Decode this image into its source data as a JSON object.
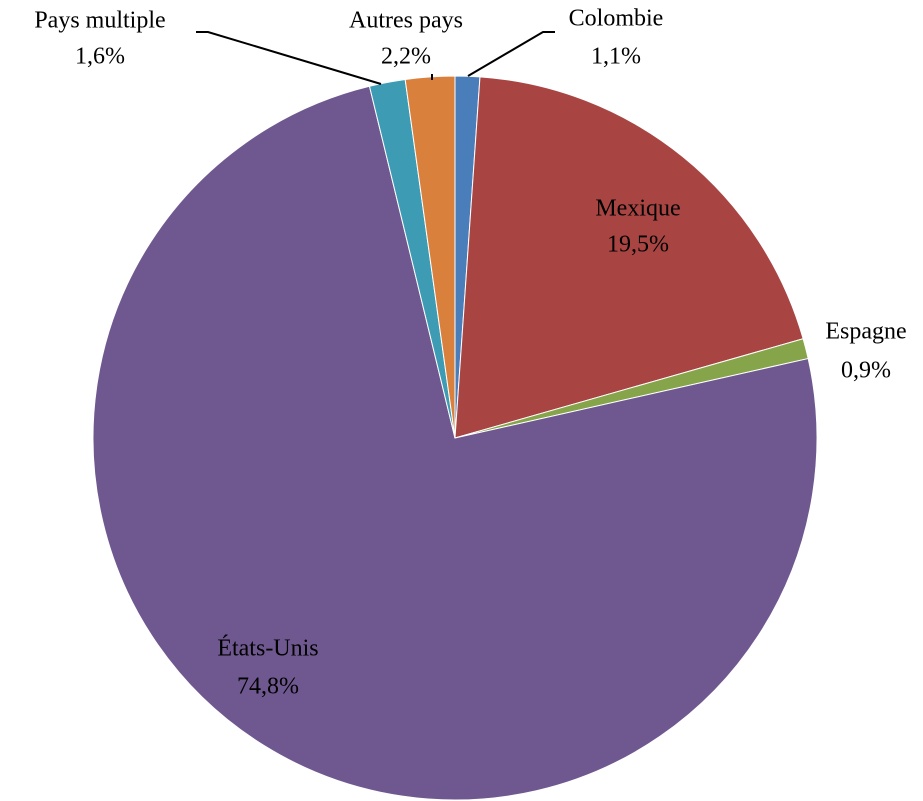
{
  "chart_data": {
    "type": "pie",
    "categories": [
      "Colombie",
      "Mexique",
      "Espagne",
      "États-Unis",
      "Pays multiple",
      "Autres pays"
    ],
    "values": [
      1.1,
      19.5,
      0.9,
      74.8,
      1.6,
      2.2
    ],
    "value_labels": [
      "1,1%",
      "19,5%",
      "0,9%",
      "74,8%",
      "1,6%",
      "2,2%"
    ],
    "colors": [
      "#4a7ebb",
      "#a84543",
      "#86a54a",
      "#6f5890",
      "#3d9bb3",
      "#d9803c"
    ]
  }
}
